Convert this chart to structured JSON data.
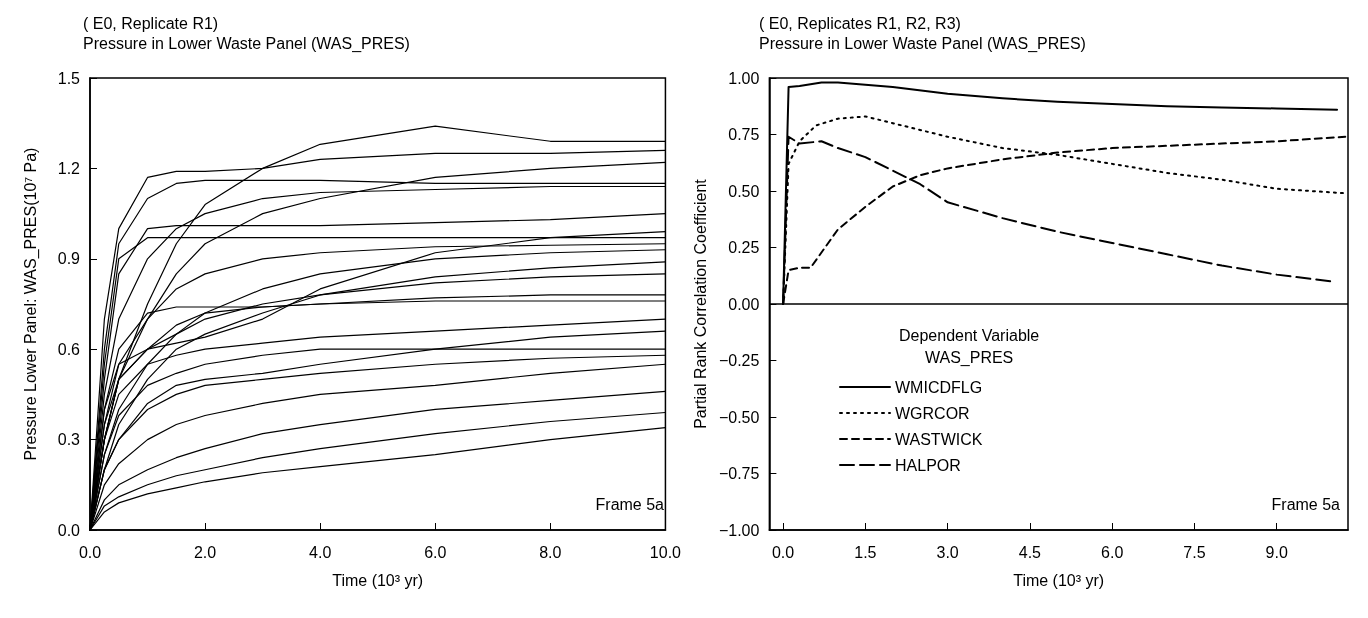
{
  "chart_data": [
    {
      "type": "line",
      "title": "( E0, Replicate R1)",
      "subtitle": "Pressure in Lower Waste Panel (WAS_PRES)",
      "xlabel": "Time (10³ yr)",
      "ylabel": "Pressure Lower Panel: WAS_PRES(10⁷ Pa)",
      "annotations": [
        "Frame 5a"
      ],
      "x": [
        0,
        0.25,
        0.5,
        1,
        1.5,
        2,
        3,
        4,
        6,
        8,
        10
      ],
      "xlim": [
        0,
        10
      ],
      "xticks": [
        {
          "value": 0,
          "label": "0.0"
        },
        {
          "value": 2,
          "label": "2.0"
        },
        {
          "value": 4,
          "label": "4.0"
        },
        {
          "value": 6,
          "label": "6.0"
        },
        {
          "value": 8,
          "label": "8.0"
        },
        {
          "value": 10,
          "label": "10.0"
        }
      ],
      "ylim": [
        0,
        1.5
      ],
      "yticks": [
        {
          "value": 0,
          "label": "0.0"
        },
        {
          "value": 0.3,
          "label": "0.3"
        },
        {
          "value": 0.6,
          "label": "0.6"
        },
        {
          "value": 0.9,
          "label": "0.9"
        },
        {
          "value": 1.2,
          "label": "1.2"
        },
        {
          "value": 1.5,
          "label": "1.5"
        }
      ],
      "grid": false,
      "legend": false,
      "marker": "none",
      "line_style": "solid",
      "series": [
        {
          "color": "#000000",
          "values": [
            0,
            0.7,
            1.0,
            1.17,
            1.19,
            1.19,
            1.2,
            1.23,
            1.25,
            1.25,
            1.26
          ]
        },
        {
          "color": "#000000",
          "values": [
            0,
            0.6,
            0.95,
            1.1,
            1.15,
            1.16,
            1.16,
            1.16,
            1.15,
            1.15,
            1.15
          ]
        },
        {
          "color": "#000000",
          "values": [
            0,
            0.5,
            0.85,
            1.0,
            1.01,
            1.01,
            1.01,
            1.01,
            1.02,
            1.03,
            1.05
          ]
        },
        {
          "color": "#000000",
          "values": [
            0,
            0.55,
            0.9,
            0.97,
            0.97,
            0.97,
            0.97,
            0.97,
            0.97,
            0.97,
            0.97
          ]
        },
        {
          "color": "#000000",
          "values": [
            0,
            0.3,
            0.5,
            0.7,
            0.85,
            0.95,
            1.05,
            1.1,
            1.17,
            1.2,
            1.22
          ]
        },
        {
          "color": "#000000",
          "values": [
            0,
            0.3,
            0.5,
            0.75,
            0.95,
            1.08,
            1.2,
            1.28,
            1.34,
            1.29,
            1.29
          ]
        },
        {
          "color": "#000000",
          "values": [
            0,
            0.4,
            0.55,
            0.6,
            0.62,
            0.64,
            0.7,
            0.8,
            0.92,
            0.97,
            0.99
          ]
        },
        {
          "color": "#000000",
          "values": [
            0,
            0.35,
            0.5,
            0.6,
            0.68,
            0.72,
            0.74,
            0.75,
            0.76,
            0.76,
            0.76
          ]
        },
        {
          "color": "#000000",
          "values": [
            0,
            0.3,
            0.45,
            0.55,
            0.58,
            0.6,
            0.62,
            0.64,
            0.66,
            0.68,
            0.7
          ]
        },
        {
          "color": "#000000",
          "values": [
            0,
            0.25,
            0.38,
            0.48,
            0.52,
            0.55,
            0.58,
            0.6,
            0.6,
            0.6,
            0.6
          ]
        },
        {
          "color": "#000000",
          "values": [
            0,
            0.2,
            0.3,
            0.4,
            0.45,
            0.48,
            0.5,
            0.52,
            0.55,
            0.57,
            0.58
          ]
        },
        {
          "color": "#000000",
          "values": [
            0,
            0.15,
            0.22,
            0.3,
            0.35,
            0.38,
            0.42,
            0.45,
            0.48,
            0.52,
            0.55
          ]
        },
        {
          "color": "#000000",
          "values": [
            0,
            0.1,
            0.15,
            0.2,
            0.24,
            0.27,
            0.32,
            0.35,
            0.4,
            0.43,
            0.46
          ]
        },
        {
          "color": "#000000",
          "values": [
            0,
            0.08,
            0.11,
            0.15,
            0.18,
            0.2,
            0.24,
            0.27,
            0.32,
            0.36,
            0.39
          ]
        },
        {
          "color": "#000000",
          "values": [
            0,
            0.06,
            0.09,
            0.12,
            0.14,
            0.16,
            0.19,
            0.21,
            0.25,
            0.3,
            0.34
          ]
        },
        {
          "color": "#000000",
          "values": [
            0,
            0.35,
            0.55,
            0.7,
            0.8,
            0.85,
            0.9,
            0.92,
            0.94,
            0.945,
            0.95
          ]
        },
        {
          "color": "#000000",
          "values": [
            0,
            0.45,
            0.7,
            0.9,
            1.0,
            1.05,
            1.1,
            1.12,
            1.13,
            1.14,
            1.14
          ]
        },
        {
          "color": "#000000",
          "values": [
            0,
            0.2,
            0.35,
            0.5,
            0.6,
            0.65,
            0.72,
            0.78,
            0.84,
            0.87,
            0.89
          ]
        },
        {
          "color": "#000000",
          "values": [
            0,
            0.25,
            0.4,
            0.55,
            0.65,
            0.72,
            0.8,
            0.85,
            0.9,
            0.92,
            0.93
          ]
        },
        {
          "color": "#000000",
          "values": [
            0,
            0.4,
            0.6,
            0.72,
            0.74,
            0.74,
            0.74,
            0.75,
            0.77,
            0.78,
            0.78
          ]
        },
        {
          "color": "#000000",
          "values": [
            0,
            0.3,
            0.5,
            0.6,
            0.65,
            0.7,
            0.75,
            0.78,
            0.82,
            0.84,
            0.85
          ]
        },
        {
          "color": "#000000",
          "values": [
            0,
            0.2,
            0.3,
            0.42,
            0.48,
            0.5,
            0.52,
            0.55,
            0.6,
            0.64,
            0.66
          ]
        }
      ]
    },
    {
      "type": "line",
      "title": "( E0, Replicates R1, R2, R3)",
      "subtitle": "Pressure in Lower Waste Panel (WAS_PRES)",
      "xlabel": "Time (10³ yr)",
      "ylabel": "Partial Rank Correlation Coefficient",
      "legend_title": "Dependent Variable\nWAS_PRES",
      "annotations": [
        "Frame 5a"
      ],
      "xlim": [
        -0.25,
        10.3
      ],
      "xticks": [
        {
          "value": 0,
          "label": "0.0"
        },
        {
          "value": 1.5,
          "label": "1.5"
        },
        {
          "value": 3,
          "label": "3.0"
        },
        {
          "value": 4.5,
          "label": "4.5"
        },
        {
          "value": 6,
          "label": "6.0"
        },
        {
          "value": 7.5,
          "label": "7.5"
        },
        {
          "value": 9,
          "label": "9.0"
        }
      ],
      "ylim": [
        -1,
        1
      ],
      "yticks": [
        {
          "value": -1,
          "label": "−1.00"
        },
        {
          "value": -0.75,
          "label": "−0.75"
        },
        {
          "value": -0.5,
          "label": "−0.50"
        },
        {
          "value": -0.25,
          "label": "−0.25"
        },
        {
          "value": 0,
          "label": "0.00"
        },
        {
          "value": 0.25,
          "label": "0.25"
        },
        {
          "value": 0.5,
          "label": "0.50"
        },
        {
          "value": 0.75,
          "label": "0.75"
        },
        {
          "value": 1,
          "label": "1.00"
        }
      ],
      "ref_lines": [
        {
          "axis": "y",
          "value": 0
        }
      ],
      "grid": false,
      "legend": "bottom left",
      "marker": "none",
      "series": [
        {
          "name": "WMICDFLG",
          "color": "#000000",
          "line_style": "solid",
          "x": [
            0,
            0.1,
            0.3,
            0.7,
            1,
            1.5,
            2,
            3,
            4,
            5,
            6,
            7,
            8,
            9,
            10.1
          ],
          "values": [
            0,
            0.96,
            0.965,
            0.98,
            0.98,
            0.97,
            0.96,
            0.93,
            0.91,
            0.895,
            0.885,
            0.875,
            0.87,
            0.865,
            0.86
          ]
        },
        {
          "name": "WGRCOR",
          "color": "#000000",
          "line_style": "dotted",
          "x": [
            0,
            0.1,
            0.3,
            0.6,
            1,
            1.5,
            2,
            3,
            4,
            5,
            6,
            7,
            8,
            9,
            10.25
          ],
          "values": [
            0,
            0.62,
            0.72,
            0.79,
            0.82,
            0.83,
            0.8,
            0.74,
            0.69,
            0.66,
            0.62,
            0.58,
            0.55,
            0.51,
            0.49
          ]
        },
        {
          "name": "WASTWICK",
          "color": "#000000",
          "line_style": "dashed",
          "x": [
            0,
            0.1,
            0.3,
            0.5,
            1,
            1.5,
            2,
            2.5,
            3,
            4,
            5,
            6,
            7,
            8,
            9,
            10.25
          ],
          "values": [
            0,
            0.15,
            0.16,
            0.16,
            0.33,
            0.43,
            0.52,
            0.57,
            0.6,
            0.64,
            0.67,
            0.69,
            0.7,
            0.71,
            0.72,
            0.74
          ]
        },
        {
          "name": "HALPOR",
          "color": "#000000",
          "line_style": "dashed",
          "x": [
            0,
            0.1,
            0.3,
            0.7,
            1,
            1.5,
            2,
            2.5,
            3,
            4,
            5,
            6,
            7,
            8,
            9,
            10
          ],
          "values": [
            0,
            0.74,
            0.71,
            0.72,
            0.69,
            0.65,
            0.59,
            0.53,
            0.45,
            0.38,
            0.32,
            0.27,
            0.22,
            0.17,
            0.13,
            0.1
          ]
        }
      ]
    }
  ]
}
